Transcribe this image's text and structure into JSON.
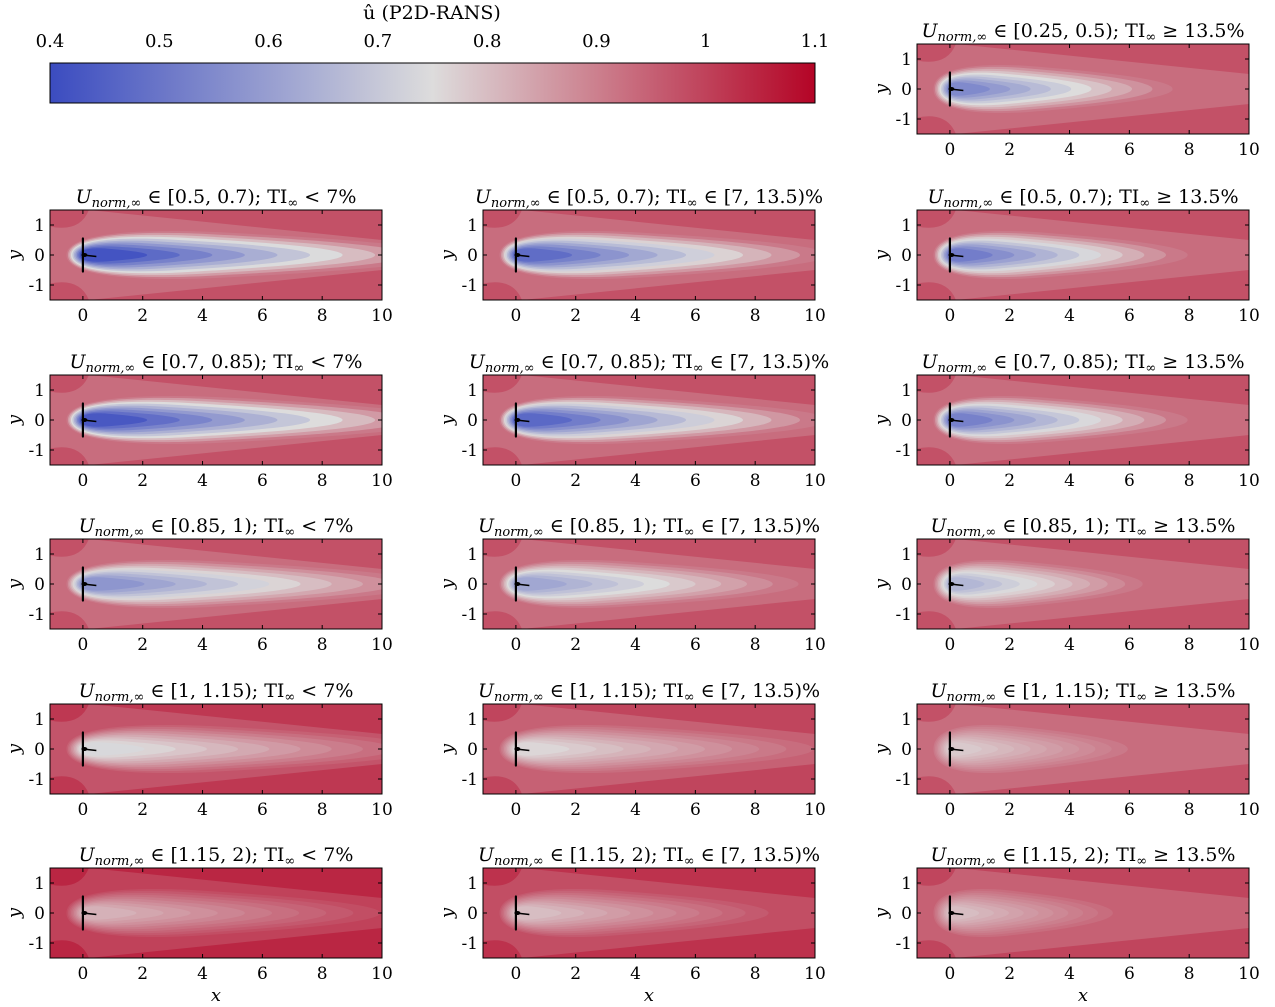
{
  "chart_data": {
    "type": "heatmap",
    "colorbar": {
      "label": "û (P2D-RANS)",
      "ticks": [
        "0.4",
        "0.5",
        "0.6",
        "0.7",
        "0.8",
        "0.9",
        "1",
        "1.1"
      ],
      "range": [
        0.4,
        1.1
      ],
      "colormap": [
        "#3b4cc0",
        "#dddcdc",
        "#b40426"
      ]
    },
    "x_axis": {
      "label": "x",
      "ticks": [
        "0",
        "2",
        "4",
        "6",
        "8",
        "10"
      ],
      "range": [
        -1.1,
        10
      ]
    },
    "y_axis": {
      "label": "y",
      "ticks": [
        "1",
        "0",
        "-1"
      ],
      "range": [
        -1.5,
        1.5
      ]
    },
    "panels": [
      {
        "title_var": "U",
        "title_sub": "norm,∞",
        "title_rest": " ∈ [0.25, 0.5); TI",
        "title_tail": "∞ ≥ 13.5%",
        "col": 2,
        "row": 0,
        "min_u": 0.55,
        "length": 8.0,
        "dark_edge": 0.88
      },
      {
        "title_var": "U",
        "title_sub": "norm,∞",
        "title_rest": " ∈ [0.5, 0.7); TI",
        "title_tail": "∞ < 7%",
        "col": 0,
        "row": 1,
        "min_u": 0.42,
        "length": 12.5,
        "dark_edge": 0.92
      },
      {
        "title_var": "U",
        "title_sub": "norm,∞",
        "title_rest": " ∈ [0.5, 0.7); TI",
        "title_tail": "∞ ∈ [7, 13.5)%",
        "col": 1,
        "row": 1,
        "min_u": 0.48,
        "length": 11.0,
        "dark_edge": 0.9
      },
      {
        "title_var": "U",
        "title_sub": "norm,∞",
        "title_rest": " ∈ [0.5, 0.7); TI",
        "title_tail": "∞ ≥ 13.5%",
        "col": 2,
        "row": 1,
        "min_u": 0.52,
        "length": 8.5,
        "dark_edge": 0.88
      },
      {
        "title_var": "U",
        "title_sub": "norm,∞",
        "title_rest": " ∈ [0.7, 0.85); TI",
        "title_tail": "∞ < 7%",
        "col": 0,
        "row": 2,
        "min_u": 0.43,
        "length": 12.5,
        "dark_edge": 0.92
      },
      {
        "title_var": "U",
        "title_sub": "norm,∞",
        "title_rest": " ∈ [0.7, 0.85); TI",
        "title_tail": "∞ ∈ [7, 13.5)%",
        "col": 1,
        "row": 2,
        "min_u": 0.47,
        "length": 11.0,
        "dark_edge": 0.9
      },
      {
        "title_var": "U",
        "title_sub": "norm,∞",
        "title_rest": " ∈ [0.7, 0.85); TI",
        "title_tail": "∞ ≥ 13.5%",
        "col": 2,
        "row": 2,
        "min_u": 0.53,
        "length": 8.5,
        "dark_edge": 0.88
      },
      {
        "title_var": "U",
        "title_sub": "norm,∞",
        "title_rest": " ∈ [0.85, 1); TI",
        "title_tail": "∞ < 7%",
        "col": 0,
        "row": 3,
        "min_u": 0.58,
        "length": 12.0,
        "dark_edge": 0.93
      },
      {
        "title_var": "U",
        "title_sub": "norm,∞",
        "title_rest": " ∈ [0.85, 1); TI",
        "title_tail": "∞ ∈ [7, 13.5)%",
        "col": 1,
        "row": 3,
        "min_u": 0.62,
        "length": 10.0,
        "dark_edge": 0.92
      },
      {
        "title_var": "U",
        "title_sub": "norm,∞",
        "title_rest": " ∈ [0.85, 1); TI",
        "title_tail": "∞ ≥ 13.5%",
        "col": 2,
        "row": 3,
        "min_u": 0.66,
        "length": 7.0,
        "dark_edge": 0.9
      },
      {
        "title_var": "U",
        "title_sub": "norm,∞",
        "title_rest": " ∈ [1, 1.15); TI",
        "title_tail": "∞ < 7%",
        "col": 0,
        "row": 4,
        "min_u": 0.74,
        "length": 12.0,
        "dark_edge": 0.97
      },
      {
        "title_var": "U",
        "title_sub": "norm,∞",
        "title_rest": " ∈ [1, 1.15); TI",
        "title_tail": "∞ ∈ [7, 13.5)%",
        "col": 1,
        "row": 4,
        "min_u": 0.76,
        "length": 10.5,
        "dark_edge": 0.95
      },
      {
        "title_var": "U",
        "title_sub": "norm,∞",
        "title_rest": " ∈ [1, 1.15); TI",
        "title_tail": "∞ ≥ 13.5%",
        "col": 2,
        "row": 4,
        "min_u": 0.78,
        "length": 6.5,
        "dark_edge": 0.93
      },
      {
        "title_var": "U",
        "title_sub": "norm,∞",
        "title_rest": " ∈ [1.15, 2); TI",
        "title_tail": "∞ < 7%",
        "col": 0,
        "row": 5,
        "min_u": 0.82,
        "length": 10.5,
        "dark_edge": 1.0
      },
      {
        "title_var": "U",
        "title_sub": "norm,∞",
        "title_rest": " ∈ [1.15, 2); TI",
        "title_tail": "∞ ∈ [7, 13.5)%",
        "col": 1,
        "row": 5,
        "min_u": 0.8,
        "length": 9.0,
        "dark_edge": 0.98
      },
      {
        "title_var": "U",
        "title_sub": "norm,∞",
        "title_rest": " ∈ [1.15, 2); TI",
        "title_tail": "∞ ≥ 13.5%",
        "col": 2,
        "row": 5,
        "min_u": 0.8,
        "length": 6.0,
        "dark_edge": 0.95
      }
    ]
  }
}
